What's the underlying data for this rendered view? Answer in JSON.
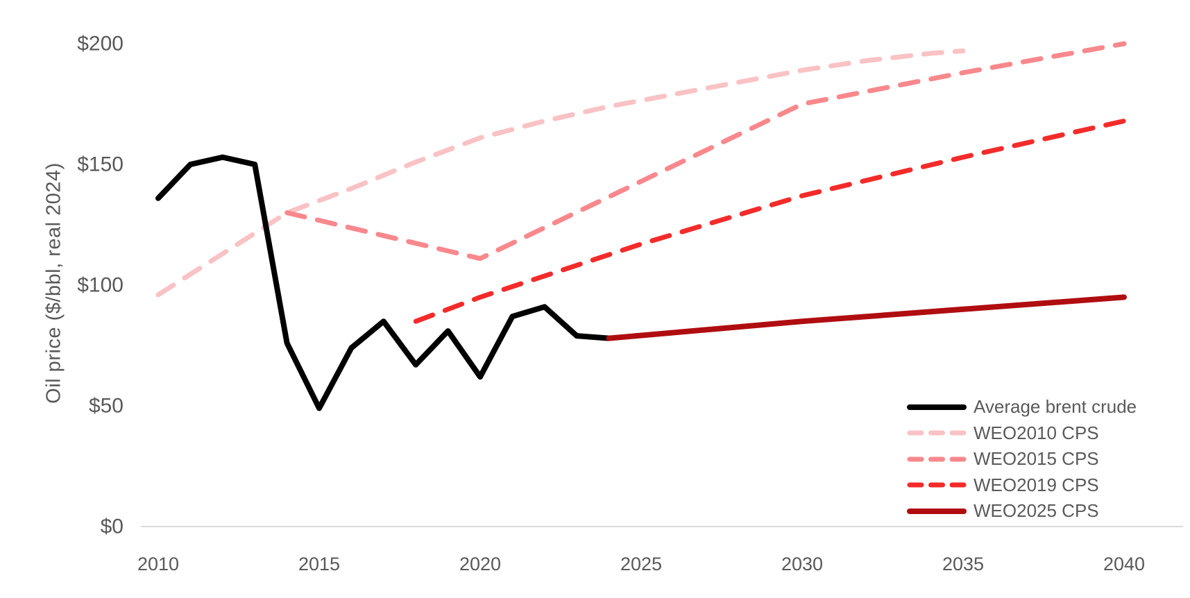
{
  "page": {
    "background": "#ffffff"
  },
  "chart_data": {
    "type": "line",
    "title": "",
    "xlabel": "",
    "ylabel": "Oil price ($/bbl, real 2024)",
    "xlim": [
      2010,
      2040
    ],
    "ylim": [
      0,
      200
    ],
    "grid": false,
    "legend_position": "lower right",
    "axis_line_color": "#d9d9d9",
    "text_color": "#595959",
    "x_ticks": [
      2010,
      2015,
      2020,
      2025,
      2030,
      2035,
      2040
    ],
    "y_ticks": [
      {
        "value": 0,
        "label": "$0"
      },
      {
        "value": 50,
        "label": "$50"
      },
      {
        "value": 100,
        "label": "$100"
      },
      {
        "value": 150,
        "label": "$150"
      },
      {
        "value": 200,
        "label": "$200"
      }
    ],
    "series": [
      {
        "name": "Average brent crude",
        "color": "#000000",
        "style": "solid",
        "points": [
          [
            2010,
            136
          ],
          [
            2011,
            150
          ],
          [
            2012,
            153
          ],
          [
            2013,
            150
          ],
          [
            2014,
            76
          ],
          [
            2015,
            49
          ],
          [
            2016,
            74
          ],
          [
            2017,
            85
          ],
          [
            2018,
            67
          ],
          [
            2019,
            81
          ],
          [
            2020,
            62
          ],
          [
            2021,
            87
          ],
          [
            2022,
            91
          ],
          [
            2023,
            79
          ],
          [
            2024,
            78
          ]
        ]
      },
      {
        "name": "WEO2010 CPS",
        "color": "#f9c2c4",
        "style": "dashed",
        "points": [
          [
            2010,
            96
          ],
          [
            2012,
            113
          ],
          [
            2014,
            130
          ],
          [
            2016,
            140
          ],
          [
            2018,
            151
          ],
          [
            2020,
            161
          ],
          [
            2022,
            168
          ],
          [
            2024,
            174
          ],
          [
            2026,
            179
          ],
          [
            2028,
            184
          ],
          [
            2030,
            189
          ],
          [
            2032,
            193
          ],
          [
            2034,
            196
          ],
          [
            2035,
            197
          ]
        ]
      },
      {
        "name": "WEO2015 CPS",
        "color": "#f8888c",
        "style": "dashed",
        "points": [
          [
            2014,
            130
          ],
          [
            2020,
            111
          ],
          [
            2025,
            143
          ],
          [
            2030,
            175
          ],
          [
            2035,
            188
          ],
          [
            2040,
            200
          ]
        ]
      },
      {
        "name": "WEO2019 CPS",
        "color": "#f32b2a",
        "style": "dashed",
        "points": [
          [
            2018,
            85
          ],
          [
            2020,
            95
          ],
          [
            2025,
            117
          ],
          [
            2030,
            137
          ],
          [
            2035,
            153
          ],
          [
            2040,
            168
          ]
        ]
      },
      {
        "name": "WEO2025 CPS",
        "color": "#b00d10",
        "style": "solid",
        "points": [
          [
            2024,
            78
          ],
          [
            2030,
            85
          ],
          [
            2035,
            90
          ],
          [
            2040,
            95
          ]
        ]
      }
    ]
  }
}
